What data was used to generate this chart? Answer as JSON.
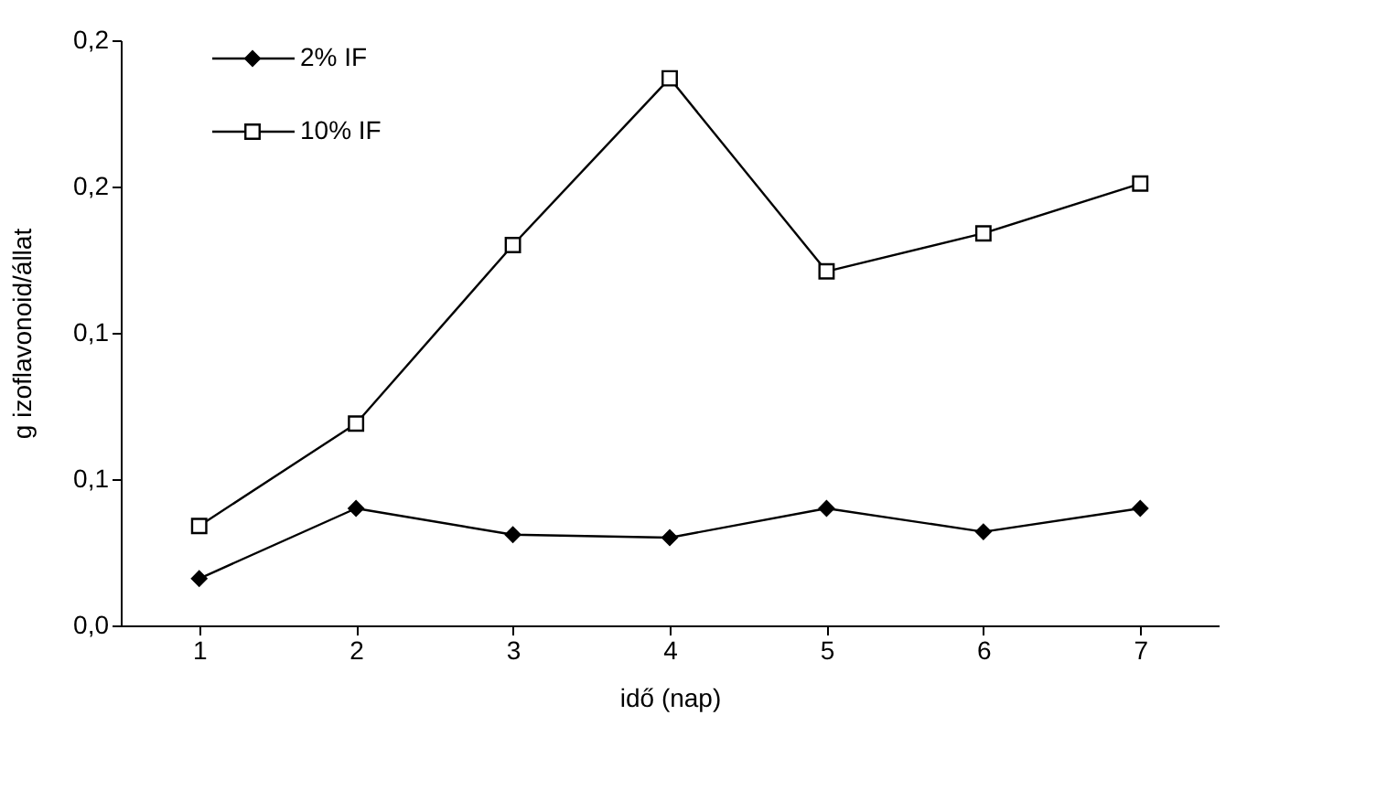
{
  "chart_data": {
    "type": "line",
    "xlabel": "idő (nap)",
    "ylabel": "g izoflavonoid/állat",
    "categories": [
      "1",
      "2",
      "3",
      "4",
      "5",
      "6",
      "7"
    ],
    "series": [
      {
        "name": "2% IF",
        "color": "#000000",
        "marker": "diamond",
        "values": [
          0.016,
          0.04,
          0.031,
          0.03,
          0.04,
          0.032,
          0.04
        ]
      },
      {
        "name": "10% IF",
        "color": "#000000",
        "marker": "square",
        "values": [
          0.034,
          0.069,
          0.13,
          0.187,
          0.121,
          0.134,
          0.151
        ]
      }
    ],
    "ylim": [
      0,
      0.2
    ],
    "yticks": [
      {
        "value": 0,
        "label": "0,0"
      },
      {
        "value": 0.05,
        "label": "0,1"
      },
      {
        "value": 0.1,
        "label": "0,1"
      },
      {
        "value": 0.15,
        "label": "0,2"
      },
      {
        "value": 0.2,
        "label": "0,2"
      }
    ],
    "grid": false,
    "legend": "top left",
    "line_style": "solid"
  }
}
